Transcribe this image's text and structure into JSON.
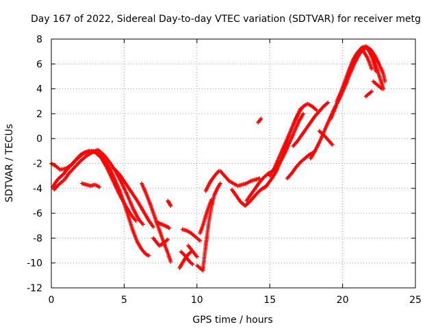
{
  "chart_data": {
    "type": "scatter",
    "title": "Day 167 of 2022, Sidereal Day-to-day VTEC variation (SDTVAR) for receiver metg",
    "xlabel": "GPS time / hours",
    "ylabel": "SDTVAR / TECUs",
    "xlim": [
      0,
      25
    ],
    "ylim": [
      -12,
      8
    ],
    "xticks": [
      "0",
      "5",
      "10",
      "15",
      "20",
      "25"
    ],
    "yticks": [
      "-12",
      "-10",
      "-8",
      "-6",
      "-4",
      "-2",
      "0",
      "2",
      "4",
      "6",
      "8"
    ],
    "grid": true,
    "marker": "+",
    "color": "#ff0000",
    "series": [
      {
        "x": [
          0.1,
          0.3,
          0.5,
          0.8,
          1.0,
          1.3,
          1.6,
          2.0,
          2.3,
          2.6,
          2.9,
          3.2,
          3.5,
          3.8,
          4.1,
          4.4,
          4.7,
          5.0,
          5.3,
          5.6,
          5.9,
          6.2,
          6.5,
          6.7
        ],
        "y": [
          -3.9,
          -3.5,
          -3.2,
          -2.9,
          -2.6,
          -2.2,
          -1.8,
          -1.3,
          -1.1,
          -1.0,
          -1.0,
          -1.2,
          -1.5,
          -2.0,
          -2.6,
          -3.4,
          -4.2,
          -5.2,
          -6.3,
          -7.4,
          -8.3,
          -8.9,
          -9.3,
          -9.4
        ]
      },
      {
        "x": [
          0.2,
          0.5,
          0.9,
          1.2,
          1.6,
          2.0,
          2.4,
          2.8,
          3.2,
          3.6,
          4.0,
          4.4,
          4.8,
          5.2,
          5.6,
          6.0,
          6.3
        ],
        "y": [
          -4.1,
          -3.7,
          -3.3,
          -2.8,
          -2.3,
          -1.8,
          -1.4,
          -1.1,
          -0.9,
          -1.3,
          -1.9,
          -2.6,
          -3.5,
          -4.5,
          -5.6,
          -6.5,
          -6.9
        ]
      },
      {
        "x": [
          0.0,
          0.3,
          0.6,
          1.0,
          1.4,
          1.8,
          2.2,
          2.6,
          3.0,
          3.4,
          3.8,
          4.2,
          4.6,
          5.0,
          5.4,
          5.8
        ],
        "y": [
          -2.0,
          -2.2,
          -2.5,
          -2.4,
          -2.1,
          -1.6,
          -1.2,
          -1.0,
          -1.1,
          -1.5,
          -2.3,
          -3.3,
          -4.3,
          -5.2,
          -6.0,
          -6.6
        ]
      },
      {
        "x": [
          2.1,
          2.4,
          2.7,
          3.0,
          3.3
        ],
        "y": [
          -3.6,
          -3.7,
          -3.8,
          -3.7,
          -3.9
        ]
      },
      {
        "x": [
          4.3,
          4.7,
          5.1,
          5.5,
          5.9,
          6.3,
          6.7,
          7.0
        ],
        "y": [
          -2.4,
          -2.9,
          -3.6,
          -4.3,
          -5.0,
          -5.8,
          -6.6,
          -7.1
        ]
      },
      {
        "x": [
          6.2,
          6.5,
          6.8,
          7.1,
          7.4,
          7.7,
          8.0,
          8.2
        ],
        "y": [
          -3.6,
          -4.4,
          -5.3,
          -6.3,
          -7.3,
          -8.3,
          -9.2,
          -9.9
        ]
      },
      {
        "x": [
          7.0,
          7.2,
          7.4,
          7.6,
          7.8,
          8.0
        ],
        "y": [
          -8.0,
          -8.3,
          -8.6,
          -8.5,
          -8.3,
          -8.1
        ]
      },
      {
        "x": [
          7.2,
          7.4,
          7.6,
          7.8,
          8.0,
          8.1
        ],
        "y": [
          -6.7,
          -6.8,
          -6.9,
          -7.0,
          -7.1,
          -7.2
        ]
      },
      {
        "x": [
          8.0,
          8.1,
          8.2
        ],
        "y": [
          -5.0,
          -5.2,
          -5.4
        ]
      },
      {
        "x": [
          8.8,
          9.0,
          9.2,
          9.4,
          9.6
        ],
        "y": [
          -10.4,
          -10.0,
          -9.6,
          -9.3,
          -9.1
        ]
      },
      {
        "x": [
          8.9,
          9.1,
          9.3,
          9.5,
          9.7
        ],
        "y": [
          -9.1,
          -9.3,
          -9.6,
          -9.9,
          -10.1
        ]
      },
      {
        "x": [
          9.0,
          9.3,
          9.6,
          9.9,
          10.2
        ],
        "y": [
          -7.3,
          -7.4,
          -7.6,
          -7.9,
          -8.2
        ]
      },
      {
        "x": [
          9.4,
          9.6,
          9.8,
          10.0
        ],
        "y": [
          -8.6,
          -8.9,
          -9.2,
          -9.5
        ]
      },
      {
        "x": [
          10.0,
          10.2,
          10.4,
          10.6,
          10.8,
          11.0,
          11.2,
          11.4,
          11.6
        ],
        "y": [
          -10.2,
          -10.4,
          -10.6,
          -8.6,
          -6.8,
          -5.4,
          -4.5,
          -4.0,
          -3.6
        ]
      },
      {
        "x": [
          10.2,
          10.4,
          10.6,
          10.8,
          11.0
        ],
        "y": [
          -7.6,
          -7.0,
          -6.2,
          -5.5,
          -4.9
        ]
      },
      {
        "x": [
          10.6,
          10.9,
          11.2,
          11.5
        ],
        "y": [
          -4.2,
          -3.5,
          -3.0,
          -2.6
        ]
      },
      {
        "x": [
          11.6,
          11.9,
          12.2,
          12.5,
          12.8,
          13.1,
          13.4,
          13.7,
          14.0,
          14.3
        ],
        "y": [
          -2.6,
          -3.0,
          -3.4,
          -3.6,
          -3.8,
          -3.7,
          -3.6,
          -3.4,
          -3.3,
          -3.2
        ]
      },
      {
        "x": [
          12.4,
          12.7,
          13.0,
          13.3,
          13.6,
          13.9,
          14.2,
          14.5,
          14.8
        ],
        "y": [
          -4.1,
          -4.6,
          -5.1,
          -5.4,
          -5.1,
          -4.7,
          -4.3,
          -4.0,
          -3.8
        ]
      },
      {
        "x": [
          13.4,
          13.7,
          14.0,
          14.3,
          14.6,
          14.9,
          15.2,
          15.5,
          15.8,
          16.1,
          16.4,
          16.7,
          17.0,
          17.3
        ],
        "y": [
          -5.0,
          -4.5,
          -4.0,
          -3.5,
          -3.1,
          -2.8,
          -2.6,
          -2.2,
          -1.7,
          -1.0,
          -0.2,
          0.6,
          1.4,
          2.0
        ]
      },
      {
        "x": [
          14.2,
          14.4
        ],
        "y": [
          1.3,
          1.6
        ]
      },
      {
        "x": [
          14.6,
          14.9,
          15.2,
          15.5,
          15.8,
          16.1,
          16.4,
          16.7,
          17.0,
          17.3,
          17.6,
          17.9,
          18.2
        ],
        "y": [
          -4.0,
          -3.6,
          -3.1,
          -2.5,
          -1.6,
          -0.6,
          0.5,
          1.4,
          2.1,
          2.6,
          2.8,
          2.6,
          2.3
        ]
      },
      {
        "x": [
          15.0,
          15.3,
          15.6,
          15.9,
          16.2,
          16.5,
          16.8,
          17.1
        ],
        "y": [
          -3.0,
          -2.4,
          -1.6,
          -0.8,
          0.0,
          0.8,
          1.6,
          2.4
        ]
      },
      {
        "x": [
          16.2,
          16.5,
          16.8,
          17.1,
          17.4,
          17.7,
          18.0
        ],
        "y": [
          -3.2,
          -2.8,
          -2.3,
          -1.9,
          -1.6,
          -1.3,
          -1.1
        ]
      },
      {
        "x": [
          16.6,
          16.9,
          17.2,
          17.5,
          17.8,
          18.1,
          18.4,
          18.7,
          19.0
        ],
        "y": [
          -0.6,
          -0.2,
          0.3,
          0.8,
          1.3,
          1.8,
          2.2,
          2.6,
          2.9
        ]
      },
      {
        "x": [
          17.8,
          18.1,
          18.4,
          18.7,
          19.0,
          19.3,
          19.6,
          19.9,
          20.2,
          20.5,
          20.8,
          21.1,
          21.4,
          21.7,
          22.0,
          22.3
        ],
        "y": [
          -1.6,
          -1.0,
          -0.3,
          0.5,
          1.3,
          2.1,
          2.8,
          3.5,
          4.3,
          5.2,
          6.0,
          6.7,
          7.2,
          7.3,
          6.6,
          5.4
        ]
      },
      {
        "x": [
          18.4,
          18.7,
          19.0,
          19.3
        ],
        "y": [
          0.6,
          0.3,
          -0.1,
          -0.5
        ]
      },
      {
        "x": [
          19.2,
          19.5,
          19.8,
          20.1,
          20.4,
          20.7,
          21.0,
          21.3,
          21.6,
          21.9,
          22.2,
          22.5,
          22.8
        ],
        "y": [
          1.6,
          2.5,
          3.4,
          4.4,
          5.4,
          6.3,
          6.9,
          7.3,
          7.4,
          7.0,
          6.2,
          5.1,
          4.0
        ]
      },
      {
        "x": [
          19.6,
          19.9,
          20.2,
          20.5,
          20.8,
          21.1,
          21.4,
          21.7,
          22.0
        ],
        "y": [
          3.0,
          3.8,
          4.7,
          5.6,
          6.3,
          6.9,
          7.1,
          6.5,
          5.6
        ]
      },
      {
        "x": [
          20.4,
          20.7,
          21.0,
          21.3,
          21.6,
          21.9,
          22.2,
          22.5,
          22.8,
          22.9
        ],
        "y": [
          5.0,
          6.0,
          6.8,
          7.3,
          7.4,
          7.2,
          6.7,
          6.0,
          5.2,
          4.6
        ]
      },
      {
        "x": [
          21.6,
          21.8,
          22.0
        ],
        "y": [
          3.4,
          3.6,
          3.8
        ]
      },
      {
        "x": [
          22.1,
          22.3,
          22.5,
          22.7
        ],
        "y": [
          4.6,
          4.4,
          4.2,
          4.0
        ]
      }
    ]
  }
}
